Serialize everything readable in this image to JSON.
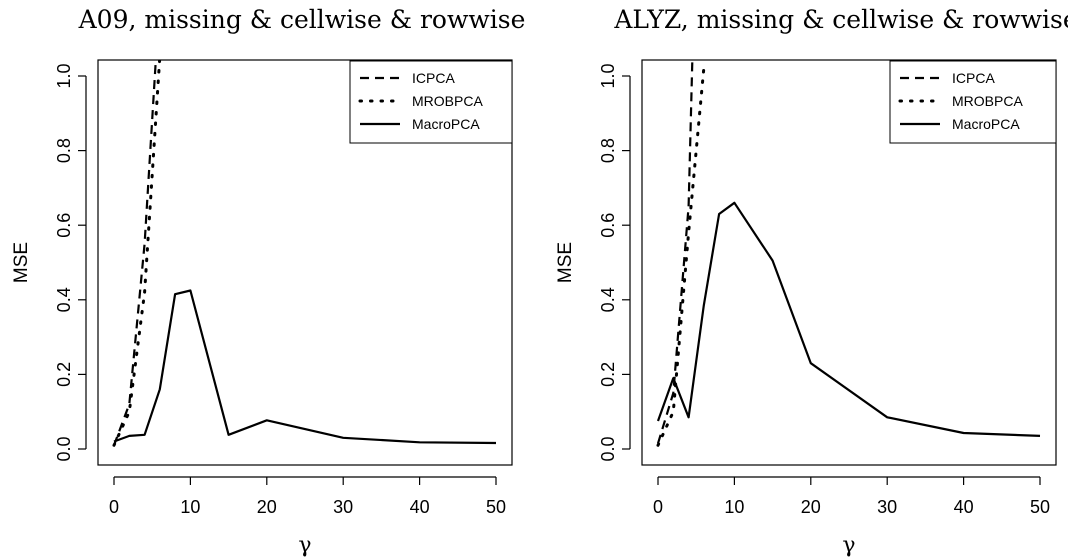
{
  "chart_data": [
    {
      "type": "line",
      "title": "A09, missing & cellwise & rowwise",
      "xlabel": "γ",
      "ylabel": "MSE",
      "xlim": [
        0,
        50
      ],
      "ylim": [
        0,
        1.0
      ],
      "xticks": [
        0,
        10,
        20,
        30,
        40,
        50
      ],
      "yticks": [
        "0.0",
        "0.2",
        "0.4",
        "0.6",
        "0.8",
        "1.0"
      ],
      "legend_position": "top-right",
      "series": [
        {
          "name": "ICPCA",
          "style": "dashed",
          "x": [
            0,
            2,
            4,
            5.5
          ],
          "y": [
            0.01,
            0.12,
            0.55,
            1.05
          ]
        },
        {
          "name": "MROBPCA",
          "style": "dotted",
          "x": [
            0,
            2,
            4,
            6
          ],
          "y": [
            0.01,
            0.1,
            0.42,
            1.05
          ]
        },
        {
          "name": "MacroPCA",
          "style": "solid",
          "x": [
            0,
            2,
            4,
            6,
            8,
            10,
            15,
            20,
            30,
            40,
            50
          ],
          "y": [
            0.02,
            0.035,
            0.038,
            0.16,
            0.415,
            0.425,
            0.038,
            0.077,
            0.03,
            0.018,
            0.016
          ]
        }
      ]
    },
    {
      "type": "line",
      "title": "ALYZ, missing & cellwise & rowwise",
      "xlabel": "γ",
      "ylabel": "MSE",
      "xlim": [
        0,
        50
      ],
      "ylim": [
        0,
        1.0
      ],
      "xticks": [
        0,
        10,
        20,
        30,
        40,
        50
      ],
      "yticks": [
        "0.0",
        "0.2",
        "0.4",
        "0.6",
        "0.8",
        "1.0"
      ],
      "legend_position": "top-right",
      "series": [
        {
          "name": "ICPCA",
          "style": "dashed",
          "x": [
            0,
            2,
            4,
            4.5
          ],
          "y": [
            0.015,
            0.15,
            0.65,
            1.05
          ]
        },
        {
          "name": "MROBPCA",
          "style": "dotted",
          "x": [
            0,
            2,
            4,
            6
          ],
          "y": [
            0.01,
            0.1,
            0.58,
            1.02
          ]
        },
        {
          "name": "MacroPCA",
          "style": "solid",
          "x": [
            0,
            2,
            4,
            6,
            8,
            10,
            15,
            20,
            30,
            40,
            50
          ],
          "y": [
            0.075,
            0.19,
            0.085,
            0.385,
            0.63,
            0.66,
            0.505,
            0.23,
            0.085,
            0.043,
            0.035
          ]
        }
      ]
    }
  ]
}
